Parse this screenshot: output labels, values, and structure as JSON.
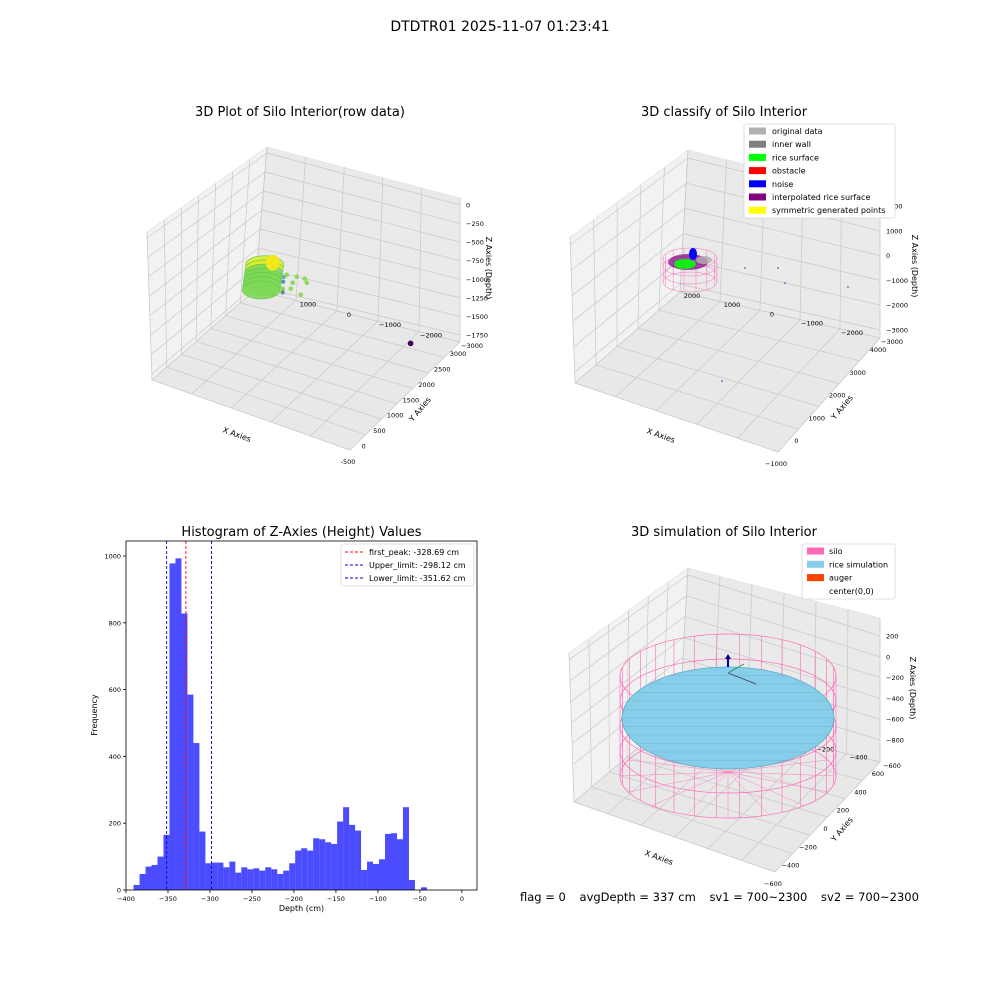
{
  "figure_title": "DTDTR01 2025-11-07 01:23:41",
  "footer": {
    "flag": "flag = 0",
    "avg_depth": "avgDepth = 337 cm",
    "sv1": "sv1 = 700~2300",
    "sv2": "sv2 = 700~2300"
  },
  "chart_data": [
    {
      "type": "scatter",
      "title": "3D Plot of Silo Interior(row data)",
      "xlabel": "X Axies",
      "ylabel": "Y Axies",
      "zlabel": "Z Axies (Depth)",
      "x_ticks": [
        "-500",
        "0",
        "500",
        "1000",
        "1500",
        "2000",
        "2500",
        "3000"
      ],
      "y_ticks": [
        "2000",
        "1000",
        "0",
        "−1000",
        "−2000",
        "−3000"
      ],
      "z_ticks": [
        "0",
        "−250",
        "−500",
        "−750",
        "−1000",
        "−1250",
        "−1500",
        "−1750"
      ],
      "xlim": [
        -600,
        3200
      ],
      "ylim": [
        -3000,
        2400
      ],
      "zlim": [
        -1850,
        80
      ],
      "grid": true,
      "cluster": {
        "x": 0,
        "y": 0,
        "z": -320,
        "color": "#7ed957"
      },
      "outliers": [
        {
          "x": 1050,
          "y": 200,
          "z": -620,
          "color": "#7fd39b"
        },
        {
          "x": 1500,
          "y": 400,
          "z": -880,
          "color": "#5fb3a8"
        },
        {
          "x": 1750,
          "y": 600,
          "z": -1050,
          "color": "#4f9aa8"
        },
        {
          "x": 3100,
          "y": 1600,
          "z": -1750,
          "color": "#5b8a9a"
        },
        {
          "x": 2800,
          "y": -2000,
          "z": -1850,
          "color": "#440154"
        }
      ]
    },
    {
      "type": "scatter",
      "title": "3D classify of Silo Interior",
      "xlabel": "X Axies",
      "ylabel": "Y Axies",
      "zlabel": "Z Axies (Depth)",
      "x_ticks": [
        "−1000",
        "0",
        "1000",
        "2000",
        "3000",
        "4000"
      ],
      "y_ticks": [
        "2000",
        "1000",
        "0",
        "−1000",
        "−2000",
        "−3000"
      ],
      "z_ticks": [
        "2000",
        "1000",
        "0",
        "−1000",
        "−2000",
        "−3000"
      ],
      "legend_position": "top-right",
      "legend": [
        {
          "label": "original data",
          "color": "#b0b0b0"
        },
        {
          "label": "inner wall",
          "color": "#808080"
        },
        {
          "label": "rice surface",
          "color": "#00ff00"
        },
        {
          "label": "obstacle",
          "color": "#ff0000"
        },
        {
          "label": "noise",
          "color": "#0000ff"
        },
        {
          "label": "interpolated rice surface",
          "color": "#800080"
        },
        {
          "label": "symmetric generated points",
          "color": "#ffff00"
        }
      ],
      "grid": true
    },
    {
      "type": "bar",
      "title": "Histogram of Z-Axies (Height) Values",
      "xlabel": "Depth (cm)",
      "ylabel": "Frequency",
      "xlim": [
        -400,
        18
      ],
      "ylim": [
        0,
        1045
      ],
      "x_ticks": [
        -400,
        -350,
        -300,
        -250,
        -200,
        -150,
        -100,
        -50,
        0
      ],
      "y_ticks": [
        0,
        200,
        400,
        600,
        800,
        1000
      ],
      "bin_start": -391,
      "bin_width": 7.13,
      "values": [
        15,
        48,
        70,
        75,
        100,
        165,
        978,
        993,
        828,
        585,
        440,
        175,
        80,
        82,
        82,
        68,
        85,
        52,
        68,
        62,
        65,
        58,
        68,
        62,
        48,
        58,
        80,
        118,
        125,
        118,
        155,
        152,
        143,
        138,
        205,
        248,
        195,
        178,
        60,
        85,
        78,
        92,
        168,
        170,
        152,
        248,
        30,
        0,
        8
      ],
      "bar_color": "#0000ff",
      "bar_opacity": 0.7,
      "lines": [
        {
          "label": "first_peak: -328.69 cm",
          "x": -328.69,
          "color": "#ff0000"
        },
        {
          "label": "Upper_limit: -298.12 cm",
          "x": -298.12,
          "color": "#0000cc"
        },
        {
          "label": "Lower_limit: -351.62 cm",
          "x": -351.62,
          "color": "#0000cc"
        }
      ],
      "legend_position": "top-right"
    },
    {
      "type": "scatter",
      "title": "3D simulation of Silo Interior",
      "xlabel": "X Axies",
      "ylabel": "Y Axies",
      "zlabel": "Z Axies (Depth)",
      "x_ticks": [
        "−600",
        "−400",
        "−200",
        "0",
        "200",
        "400",
        "600"
      ],
      "y_ticks": [
        "600",
        "400",
        "200",
        "0",
        "−200",
        "−400",
        "−600"
      ],
      "z_ticks": [
        "200",
        "0",
        "−200",
        "−400",
        "−600",
        "−800"
      ],
      "legend_position": "top-right",
      "legend": [
        {
          "label": "silo",
          "color": "#ff69b4"
        },
        {
          "label": "rice simulation",
          "color": "#87ceeb"
        },
        {
          "label": "auger",
          "color": "#ff4500"
        },
        {
          "label": "center(0,0)",
          "color": "#ffffff"
        }
      ],
      "grid": true
    }
  ]
}
